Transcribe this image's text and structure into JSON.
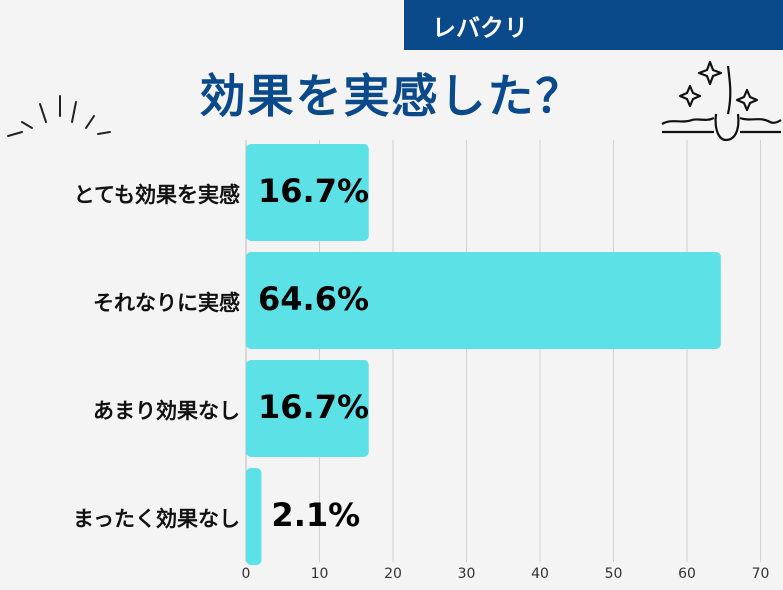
{
  "brand": "レバクリ",
  "title": "効果を実感した？",
  "colors": {
    "brand_blue": "#0b4a8a",
    "bar": "#5ce1e6",
    "grid": "#d0d0d0"
  },
  "chart_data": {
    "type": "bar",
    "orientation": "horizontal",
    "categories": [
      "とても効果を実感",
      "それなりに実感",
      "あまり効果なし",
      "まったく効果なし"
    ],
    "values": [
      16.7,
      64.6,
      16.7,
      2.1
    ],
    "value_labels": [
      "16.7%",
      "64.6%",
      "16.7%",
      "2.1%"
    ],
    "xlim": [
      0,
      70
    ],
    "xticks": [
      0,
      10,
      20,
      30,
      40,
      50,
      60,
      70
    ],
    "grid": true
  }
}
